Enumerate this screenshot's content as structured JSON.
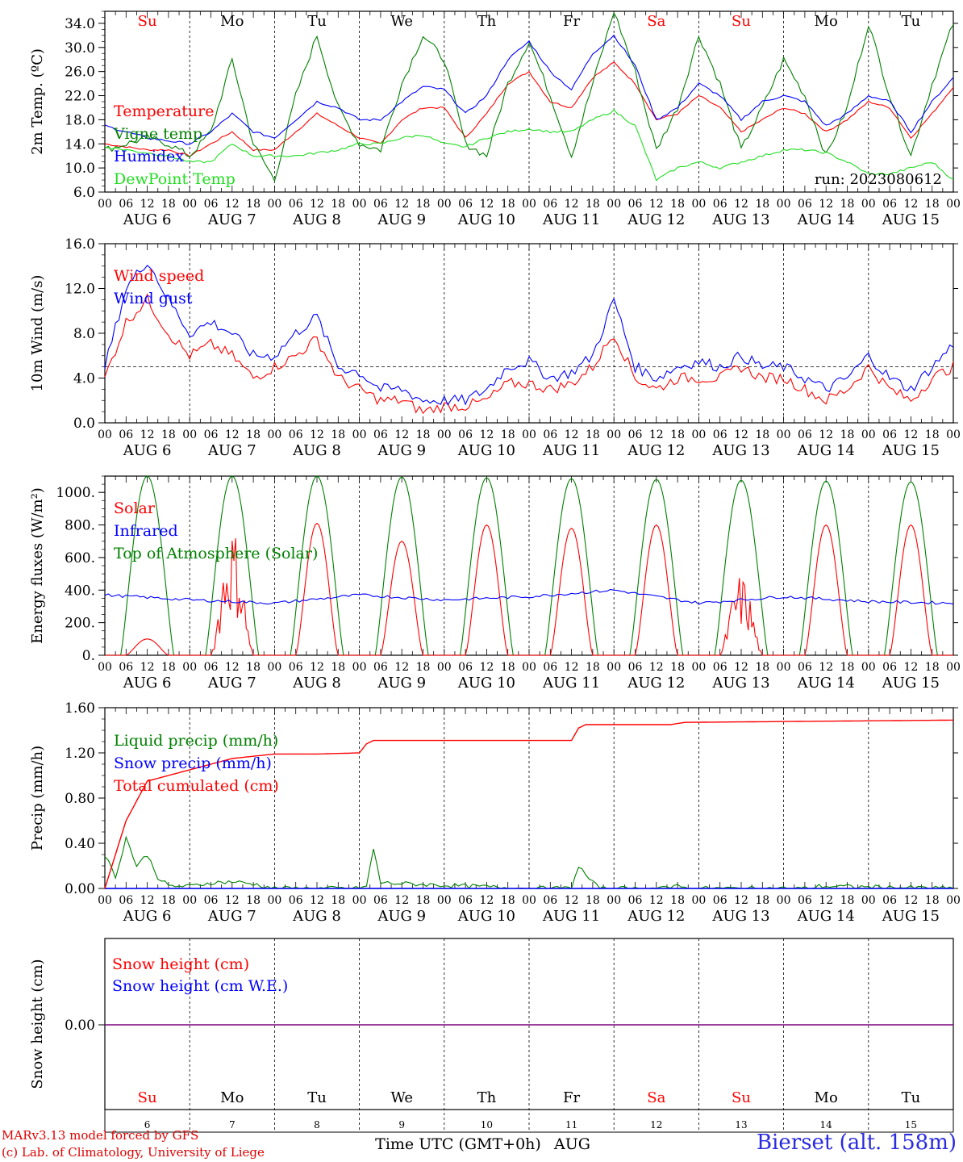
{
  "footer": {
    "model": "MARv3.13 model forced by GFS",
    "credit": "(c) Lab. of Climatology, University of Liege",
    "station": "Bierset (alt. 158m)",
    "time_axis_label": "Time UTC (GMT+0h)",
    "month_label": "AUG"
  },
  "colors": {
    "red": "#ff0000",
    "blue": "#0000ff",
    "green": "#008000",
    "lightgreen": "#22dd22",
    "purple": "#7f007f",
    "weekend": "#ff0000",
    "weekday": "#000000"
  },
  "days": [
    {
      "dow": "Su",
      "date": "AUG 6",
      "day": "6",
      "weekend": true
    },
    {
      "dow": "Mo",
      "date": "AUG 7",
      "day": "7",
      "weekend": false
    },
    {
      "dow": "Tu",
      "date": "AUG 8",
      "day": "8",
      "weekend": false
    },
    {
      "dow": "We",
      "date": "AUG 9",
      "day": "9",
      "weekend": false
    },
    {
      "dow": "Th",
      "date": "AUG 10",
      "day": "10",
      "weekend": false
    },
    {
      "dow": "Fr",
      "date": "AUG 11",
      "day": "11",
      "weekend": false
    },
    {
      "dow": "Sa",
      "date": "AUG 12",
      "day": "12",
      "weekend": true
    },
    {
      "dow": "Su",
      "date": "AUG 13",
      "day": "13",
      "weekend": true
    },
    {
      "dow": "Mo",
      "date": "AUG 14",
      "day": "14",
      "weekend": false
    },
    {
      "dow": "Tu",
      "date": "AUG 15",
      "day": "15",
      "weekend": false
    }
  ],
  "hour_ticks": [
    "00",
    "06",
    "12",
    "18"
  ],
  "chart_data": [
    {
      "type": "line",
      "ylabel": "2m Temp. (ºC)",
      "ylim": [
        6,
        36
      ],
      "yticks": [
        "6.0",
        "10.0",
        "14.0",
        "18.0",
        "22.0",
        "26.0",
        "30.0",
        "34.0"
      ],
      "ytick_values": [
        6,
        10,
        14,
        18,
        22,
        26,
        30,
        34
      ],
      "annotation": "run: 2023080612",
      "x_unit": "hours since Aug 6 00 UTC",
      "series": [
        {
          "name": "Temperature",
          "color": "#ff0000",
          "x": [
            0,
            6,
            12,
            18,
            24,
            30,
            36,
            42,
            48,
            54,
            60,
            66,
            72,
            78,
            84,
            90,
            96,
            102,
            108,
            114,
            120,
            126,
            132,
            138,
            144,
            150,
            156,
            162,
            168,
            174,
            180,
            186,
            192,
            198,
            204,
            210,
            216,
            222,
            228,
            234,
            240
          ],
          "y": [
            14,
            13.5,
            13,
            13,
            12,
            14,
            16,
            13,
            13,
            16,
            19,
            17,
            15,
            14,
            18,
            20,
            20,
            15,
            19,
            24,
            26,
            21,
            20,
            25,
            27.5,
            24,
            18,
            19,
            22,
            20,
            16,
            18,
            20,
            19,
            16,
            18,
            21,
            20,
            15,
            19,
            23.5
          ]
        },
        {
          "name": "Vigne temp",
          "color": "#008000",
          "x": [
            0,
            6,
            12,
            18,
            24,
            30,
            36,
            42,
            48,
            54,
            60,
            66,
            72,
            78,
            84,
            90,
            96,
            102,
            108,
            114,
            120,
            126,
            132,
            138,
            144,
            150,
            156,
            162,
            168,
            174,
            180,
            186,
            192,
            198,
            204,
            210,
            216,
            222,
            228,
            234,
            240
          ],
          "y": [
            13,
            14,
            15,
            14,
            12,
            16,
            28,
            14,
            8,
            22,
            32,
            20,
            14,
            13,
            24,
            32,
            28,
            14,
            12,
            24,
            31,
            22,
            12,
            24,
            36,
            26,
            13,
            20,
            32,
            24,
            13,
            20,
            28,
            22,
            12,
            20,
            34,
            22,
            12,
            24,
            34
          ]
        },
        {
          "name": "Humidex",
          "color": "#0000ff",
          "x": [
            0,
            6,
            12,
            18,
            24,
            30,
            36,
            42,
            48,
            54,
            60,
            66,
            72,
            78,
            84,
            90,
            96,
            102,
            108,
            114,
            120,
            126,
            132,
            138,
            144,
            150,
            156,
            162,
            168,
            174,
            180,
            186,
            192,
            198,
            204,
            210,
            216,
            222,
            228,
            234,
            240
          ],
          "y": [
            17,
            16,
            15,
            14.5,
            14,
            16,
            19,
            16,
            15,
            18,
            21,
            20,
            18,
            18,
            21,
            23.5,
            23,
            19,
            22,
            28,
            31,
            26,
            23,
            29,
            32,
            27,
            18,
            20,
            24,
            22,
            18,
            21,
            22,
            21,
            17,
            19,
            22,
            21,
            16,
            21,
            25
          ]
        },
        {
          "name": "DewPoint Temp",
          "color": "#22dd22",
          "x": [
            0,
            6,
            12,
            18,
            24,
            30,
            36,
            42,
            48,
            54,
            60,
            66,
            72,
            78,
            84,
            90,
            96,
            102,
            108,
            114,
            120,
            126,
            132,
            138,
            144,
            150,
            156,
            162,
            168,
            174,
            180,
            186,
            192,
            198,
            204,
            210,
            216,
            222,
            228,
            234,
            240
          ],
          "y": [
            13.5,
            13,
            12.5,
            12,
            11,
            11,
            14,
            12,
            12,
            12,
            12.5,
            13,
            14,
            14,
            15,
            15.5,
            14,
            13.5,
            15,
            16,
            16.5,
            16,
            16,
            18,
            19.5,
            17,
            8,
            10,
            11,
            10,
            11,
            12,
            13,
            13,
            12.5,
            11,
            9,
            9,
            10,
            11,
            8
          ]
        }
      ]
    },
    {
      "type": "line",
      "ylabel": "10m Wind (m/s)",
      "ylim": [
        0,
        16
      ],
      "yticks": [
        "0.0",
        "4.0",
        "8.0",
        "12.0",
        "16.0"
      ],
      "ytick_values": [
        0,
        4,
        8,
        12,
        16
      ],
      "reference_line": 5,
      "series": [
        {
          "name": "Wind speed",
          "color": "#ff0000",
          "x": [
            0,
            6,
            12,
            18,
            24,
            30,
            36,
            42,
            48,
            54,
            60,
            66,
            72,
            78,
            84,
            90,
            96,
            102,
            108,
            114,
            120,
            126,
            132,
            138,
            144,
            150,
            156,
            162,
            168,
            174,
            180,
            186,
            192,
            198,
            204,
            210,
            216,
            222,
            228,
            234,
            240
          ],
          "y": [
            4,
            9,
            11,
            8,
            6,
            7,
            6,
            4,
            5,
            6,
            7.5,
            4,
            3,
            2,
            2,
            1,
            1.5,
            1.5,
            2,
            3.5,
            3.5,
            3,
            3.5,
            5,
            8,
            4,
            3,
            4,
            4,
            4,
            5,
            4,
            4,
            3,
            2,
            3,
            5,
            3,
            2,
            4,
            5
          ]
        },
        {
          "name": "Wind gust",
          "color": "#0000ff",
          "x": [
            0,
            6,
            12,
            18,
            24,
            30,
            36,
            42,
            48,
            54,
            60,
            66,
            72,
            78,
            84,
            90,
            96,
            102,
            108,
            114,
            120,
            126,
            132,
            138,
            144,
            150,
            156,
            162,
            168,
            174,
            180,
            186,
            192,
            198,
            204,
            210,
            216,
            222,
            228,
            234,
            240
          ],
          "y": [
            5,
            12,
            14.5,
            11,
            8,
            9,
            8,
            6,
            6,
            8,
            9.5,
            5,
            4.5,
            3,
            3,
            2,
            2,
            2,
            3,
            5,
            5.5,
            4,
            4.5,
            6,
            11,
            5,
            4,
            5,
            5.5,
            5,
            6,
            5,
            5,
            4,
            3,
            4,
            6,
            4,
            3,
            5,
            7
          ]
        }
      ]
    },
    {
      "type": "line",
      "ylabel": "Energy fluxes (W/m²)",
      "ylim": [
        0,
        1100
      ],
      "yticks": [
        "0.",
        "200.",
        "400.",
        "600.",
        "800.",
        "1000."
      ],
      "ytick_values": [
        0,
        200,
        400,
        600,
        800,
        1000
      ],
      "series": [
        {
          "name": "Solar",
          "color": "#ff0000",
          "day_peaks": [
            100,
            800,
            810,
            700,
            800,
            780,
            800,
            500,
            800,
            800
          ]
        },
        {
          "name": "Infrared",
          "color": "#0000ff",
          "x": [
            0,
            24,
            48,
            72,
            96,
            120,
            144,
            168,
            192,
            216,
            240
          ],
          "y": [
            370,
            340,
            320,
            370,
            340,
            360,
            400,
            320,
            360,
            330,
            320
          ]
        },
        {
          "name": "Top of Atmosphere (Solar)",
          "color": "#008000",
          "day_peaks": [
            1100,
            1100,
            1100,
            1095,
            1090,
            1085,
            1080,
            1075,
            1070,
            1065
          ]
        }
      ]
    },
    {
      "type": "line",
      "ylabel": "Precip (mm/h)",
      "ylim": [
        0,
        1.6
      ],
      "yticks": [
        "0.00",
        "0.40",
        "0.80",
        "1.20",
        "1.60"
      ],
      "ytick_values": [
        0,
        0.4,
        0.8,
        1.2,
        1.6
      ],
      "series": [
        {
          "name": "Liquid precip (mm/h)",
          "color": "#008000",
          "x": [
            0,
            3,
            6,
            9,
            12,
            15,
            18,
            24,
            30,
            36,
            42,
            48,
            72,
            74,
            76,
            78,
            120,
            132,
            134,
            136,
            138,
            140,
            160,
            162,
            164,
            200,
            202,
            240
          ],
          "y": [
            0.3,
            0.1,
            0.45,
            0.2,
            0.3,
            0.1,
            0.02,
            0.02,
            0.05,
            0.06,
            0.04,
            0,
            0,
            0.02,
            0.35,
            0.05,
            0,
            0,
            0.2,
            0.12,
            0.05,
            0,
            0,
            0.05,
            0,
            0,
            0.02,
            0
          ]
        },
        {
          "name": "Snow precip (mm/h)",
          "color": "#0000ff",
          "x": [
            0,
            240
          ],
          "y": [
            0,
            0
          ]
        },
        {
          "name": "Total cumulated (cm)",
          "color": "#ff0000",
          "x": [
            0,
            6,
            12,
            18,
            24,
            30,
            36,
            42,
            48,
            60,
            72,
            74,
            76,
            120,
            132,
            134,
            136,
            160,
            164,
            240
          ],
          "y": [
            0,
            0.6,
            0.95,
            1.0,
            1.05,
            1.1,
            1.15,
            1.17,
            1.19,
            1.19,
            1.2,
            1.28,
            1.31,
            1.31,
            1.31,
            1.42,
            1.45,
            1.45,
            1.47,
            1.49
          ]
        }
      ]
    },
    {
      "type": "line",
      "ylabel": "Snow height (cm)",
      "yticks": [
        "0.00"
      ],
      "series": [
        {
          "name": "Snow height (cm)",
          "color": "#ff0000",
          "x": [
            0,
            240
          ],
          "y": [
            0,
            0
          ]
        },
        {
          "name": "Snow height (cm W.E.)",
          "color": "#0000ff",
          "x": [
            0,
            240
          ],
          "y": [
            0,
            0
          ]
        }
      ]
    }
  ]
}
